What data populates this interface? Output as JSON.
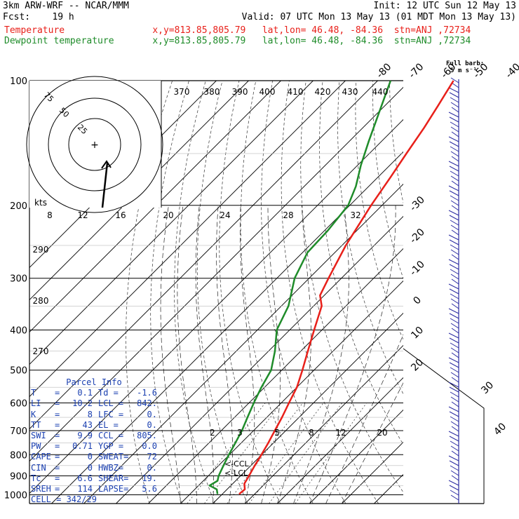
{
  "header": {
    "line1_left": "3km ARW-WRF -- NCAR/MMM",
    "line1_right": "Init: 12 UTC Sun 12 May 13",
    "line2_left": "Fcst:    19 h",
    "line2_right": "Valid: 07 UTC Mon 13 May 13 (01 MDT Mon 13 May 13)",
    "line3": "Temperature                x,y=813.85,805.79   lat,lon= 46.48, -84.36  stn=ANJ ,72734",
    "line4": "Dewpoint temperature       x,y=813.85,805.79   lat,lon= 46.48, -84.36  stn=ANJ ,72734",
    "full_barb": "Full barb:",
    "full_barb_units": "5 m s⁻¹",
    "colors": {
      "temperature": "#e8201a",
      "dewpoint": "#1f8c2a",
      "parcel": "#1a3fb0",
      "wind": "#2a2aa0"
    }
  },
  "chart_data": {
    "type": "line",
    "title": "",
    "ylabel": "",
    "pressure_ticks": [
      100,
      200,
      300,
      400,
      500,
      600,
      700,
      800,
      900,
      1000
    ],
    "pressure_tick_labels": [
      "100",
      "200",
      "300",
      "400",
      "500",
      "600",
      "700",
      "800",
      "900",
      "1000"
    ],
    "top_temperature_labels": [
      "-80",
      "-70",
      "-60",
      "-50",
      "-40"
    ],
    "right_temperature_labels": [
      "-30",
      "-20",
      "-10",
      "0",
      "10",
      "20",
      "30",
      "40"
    ],
    "theta_labels": [
      "370",
      "380",
      "390",
      "400",
      "410",
      "420",
      "430",
      "440"
    ],
    "theta_side_labels": [
      "290",
      "280",
      "270"
    ],
    "mixing_ratio_labels": [
      "2",
      "3",
      "5",
      "8",
      "12",
      "20"
    ],
    "wind_speed_labels": [
      "kts",
      "8",
      "12",
      "16",
      "20",
      "24",
      "28",
      "32"
    ],
    "hodograph_ring_labels": [
      "75",
      "50",
      "25"
    ],
    "lcl_label": "<-LCL",
    "ccl_label": "<-CCL",
    "series": [
      {
        "name": "Temperature",
        "points": [
          [
            996,
            5.2
          ],
          [
            970,
            5.5
          ],
          [
            940,
            3.6
          ],
          [
            900,
            2.6
          ],
          [
            850,
            1.2
          ],
          [
            800,
            -0.1
          ],
          [
            750,
            -1.6
          ],
          [
            700,
            -3.4
          ],
          [
            650,
            -5.3
          ],
          [
            600,
            -7.6
          ],
          [
            550,
            -10.0
          ],
          [
            500,
            -13.6
          ],
          [
            450,
            -17.8
          ],
          [
            400,
            -22.4
          ],
          [
            350,
            -27.5
          ],
          [
            330,
            -31.3
          ],
          [
            300,
            -34.0
          ],
          [
            250,
            -38.8
          ],
          [
            200,
            -43.4
          ],
          [
            170,
            -46.2
          ],
          [
            150,
            -48.5
          ],
          [
            130,
            -51.0
          ],
          [
            115,
            -53.5
          ],
          [
            100,
            -56.5
          ]
        ]
      },
      {
        "name": "Dewpoint temperature",
        "points": [
          [
            996,
            -1.5
          ],
          [
            970,
            -3.2
          ],
          [
            950,
            -6.6
          ],
          [
            925,
            -5.6
          ],
          [
            900,
            -6.8
          ],
          [
            850,
            -8.5
          ],
          [
            800,
            -10.2
          ],
          [
            750,
            -11.8
          ],
          [
            700,
            -13.6
          ],
          [
            650,
            -16.0
          ],
          [
            600,
            -18.5
          ],
          [
            550,
            -21.0
          ],
          [
            500,
            -23.3
          ],
          [
            450,
            -28.0
          ],
          [
            400,
            -34.0
          ],
          [
            350,
            -37.8
          ],
          [
            300,
            -44.5
          ],
          [
            260,
            -48.5
          ],
          [
            230,
            -49.0
          ],
          [
            200,
            -50.5
          ],
          [
            180,
            -54.0
          ],
          [
            160,
            -59.0
          ],
          [
            140,
            -64.0
          ],
          [
            120,
            -69.5
          ],
          [
            100,
            -76.0
          ]
        ]
      }
    ]
  },
  "parcel_info": {
    "title": "Parcel Info",
    "rows": [
      {
        "k": "T",
        "v": "0.1",
        "k2": "Td =",
        "v2": "-1.6"
      },
      {
        "k": "LI",
        "v": "10.2",
        "k2": "LCL =",
        "v2": "842."
      },
      {
        "k": "K",
        "v": "8",
        "k2": "LFC =",
        "v2": "0."
      },
      {
        "k": "TT",
        "v": "43",
        "k2": "EL =",
        "v2": "0."
      },
      {
        "k": "SWI",
        "v": "9.9",
        "k2": "CCL =",
        "v2": "805."
      },
      {
        "k": "PW",
        "v": "0.71",
        "k2": "YGP =",
        "v2": "0.0"
      },
      {
        "k": "CAPE",
        "v": "0",
        "k2": "SWEAT=",
        "v2": "72"
      },
      {
        "k": "CIN",
        "v": "0",
        "k2": "HWBZ=",
        "v2": "0."
      },
      {
        "k": "Tc",
        "v": "6.6",
        "k2": "SHEAR=",
        "v2": "19."
      },
      {
        "k": "SREH",
        "v": "114",
        "k2": "LAPSE=",
        "v2": "5.6"
      }
    ],
    "cell": "CELL = 342/29"
  }
}
